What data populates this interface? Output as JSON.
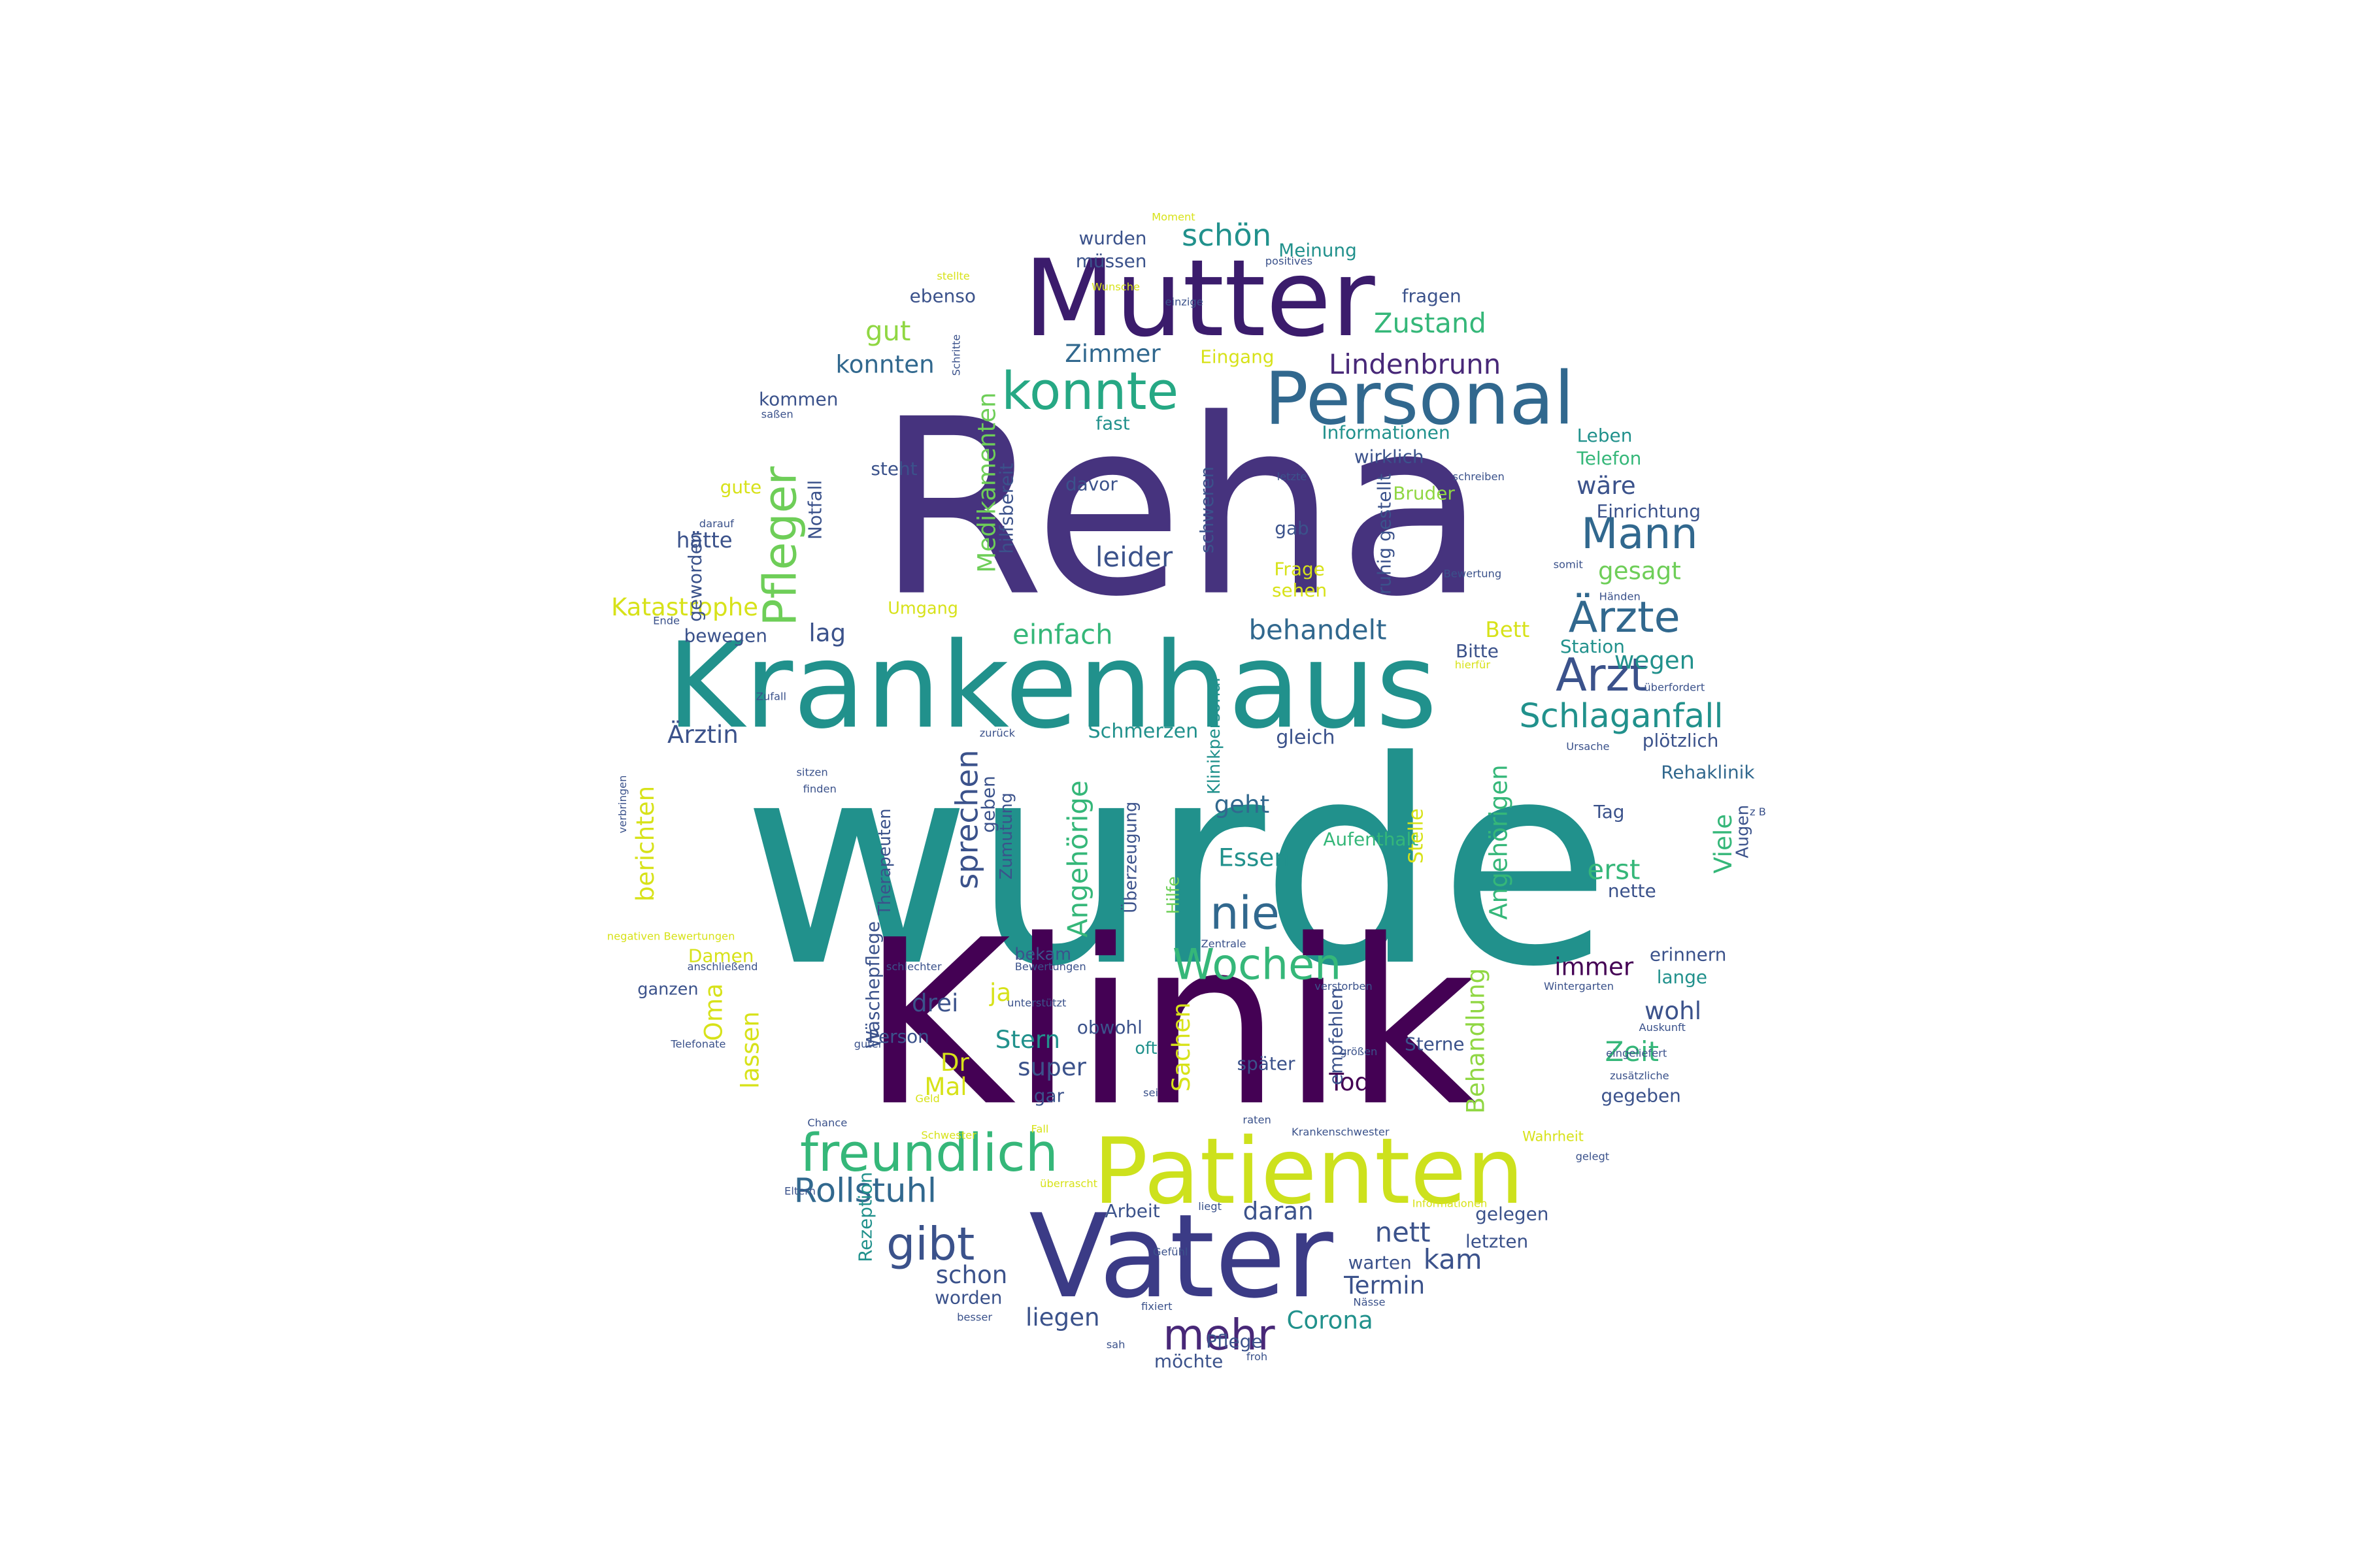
{
  "palette": {
    "dark_purple": "#440154",
    "indigo": "#3b528b",
    "blue": "#31688e",
    "teal": "#21918c",
    "green": "#35b779",
    "lime": "#90d743",
    "yellow": "#d7e219"
  },
  "words": [
    {
      "text": "wurde",
      "color": "#21918c",
      "vertical": false
    },
    {
      "text": "Reha",
      "color": "#46337e",
      "vertical": false
    },
    {
      "text": "Klinik",
      "color": "#440154",
      "vertical": false
    },
    {
      "text": "Krankenhaus",
      "color": "#21918c",
      "vertical": false
    },
    {
      "text": "Mutter",
      "color": "#3b1c6c",
      "vertical": false
    },
    {
      "text": "Vater",
      "color": "#3b3b86",
      "vertical": false
    },
    {
      "text": "Patienten",
      "color": "#cde11d",
      "vertical": false
    },
    {
      "text": "Personal",
      "color": "#31688e",
      "vertical": false
    },
    {
      "text": "konnte",
      "color": "#26a884",
      "vertical": false
    },
    {
      "text": "Pfleger",
      "color": "#6ece58",
      "vertical": true
    },
    {
      "text": "Mann",
      "color": "#31688e",
      "vertical": false
    },
    {
      "text": "Ärzte",
      "color": "#31688e",
      "vertical": false
    },
    {
      "text": "Arzt",
      "color": "#3b528b",
      "vertical": false
    },
    {
      "text": "Schlaganfall",
      "color": "#21918c",
      "vertical": false
    },
    {
      "text": "freundlich",
      "color": "#35b779",
      "vertical": false
    },
    {
      "text": "Wochen",
      "color": "#35b779",
      "vertical": false
    },
    {
      "text": "nie",
      "color": "#31688e",
      "vertical": false
    },
    {
      "text": "mehr",
      "color": "#482878",
      "vertical": false
    },
    {
      "text": "gibt",
      "color": "#3b528b",
      "vertical": false
    },
    {
      "text": "Rollstuhl",
      "color": "#31688e",
      "vertical": false
    },
    {
      "text": "Medikamenten",
      "color": "#6ece58",
      "vertical": true
    },
    {
      "text": "Lindenbrunn",
      "color": "#482878",
      "vertical": false
    },
    {
      "text": "schön",
      "color": "#21918c",
      "vertical": false
    },
    {
      "text": "Zustand",
      "color": "#35b779",
      "vertical": false
    },
    {
      "text": "gut",
      "color": "#90d743",
      "vertical": false
    },
    {
      "text": "konnten",
      "color": "#31688e",
      "vertical": false
    },
    {
      "text": "Zimmer",
      "color": "#31688e",
      "vertical": false
    },
    {
      "text": "leider",
      "color": "#3b528b",
      "vertical": false
    },
    {
      "text": "behandelt",
      "color": "#31688e",
      "vertical": false
    },
    {
      "text": "einfach",
      "color": "#35b779",
      "vertical": false
    },
    {
      "text": "wegen",
      "color": "#21918c",
      "vertical": false
    },
    {
      "text": "gesagt",
      "color": "#6ece58",
      "vertical": false
    },
    {
      "text": "wäre",
      "color": "#3b528b",
      "vertical": false
    },
    {
      "text": "sprechen",
      "color": "#3b528b",
      "vertical": true
    },
    {
      "text": "Angehörige",
      "color": "#35b779",
      "vertical": true
    },
    {
      "text": "Angehörigen",
      "color": "#35b779",
      "vertical": true
    },
    {
      "text": "Behandlung",
      "color": "#90d743",
      "vertical": true
    },
    {
      "text": "Essen",
      "color": "#21918c",
      "vertical": false
    },
    {
      "text": "geht",
      "color": "#31688e",
      "vertical": false
    },
    {
      "text": "immer",
      "color": "#440154",
      "vertical": false
    },
    {
      "text": "wohl",
      "color": "#3b528b",
      "vertical": false
    },
    {
      "text": "Zeit",
      "color": "#35b779",
      "vertical": false
    },
    {
      "text": "Viele",
      "color": "#35b779",
      "vertical": true
    },
    {
      "text": "erst",
      "color": "#35b779",
      "vertical": false
    },
    {
      "text": "nett",
      "color": "#3b528b",
      "vertical": false
    },
    {
      "text": "kam",
      "color": "#3b528b",
      "vertical": false
    },
    {
      "text": "Termin",
      "color": "#3b528b",
      "vertical": false
    },
    {
      "text": "Corona",
      "color": "#21918c",
      "vertical": false
    },
    {
      "text": "daran",
      "color": "#3b528b",
      "vertical": false
    },
    {
      "text": "schon",
      "color": "#3b528b",
      "vertical": false
    },
    {
      "text": "liegen",
      "color": "#3b528b",
      "vertical": false
    },
    {
      "text": "Stern",
      "color": "#21918c",
      "vertical": false
    },
    {
      "text": "super",
      "color": "#3b528b",
      "vertical": false
    },
    {
      "text": "Tod",
      "color": "#440154",
      "vertical": false
    },
    {
      "text": "Sachen",
      "color": "#d7e219",
      "vertical": true
    },
    {
      "text": "ja",
      "color": "#d7e219",
      "vertical": false
    },
    {
      "text": "drei",
      "color": "#3b528b",
      "vertical": false
    },
    {
      "text": "Dr",
      "color": "#d7e219",
      "vertical": false
    },
    {
      "text": "Mal",
      "color": "#d7e219",
      "vertical": false
    },
    {
      "text": "Oma",
      "color": "#d7e219",
      "vertical": true
    },
    {
      "text": "lassen",
      "color": "#d7e219",
      "vertical": true
    },
    {
      "text": "berichten",
      "color": "#d7e219",
      "vertical": true
    },
    {
      "text": "Ärztin",
      "color": "#3b528b",
      "vertical": false
    },
    {
      "text": "Katastrophe",
      "color": "#d7e219",
      "vertical": false
    },
    {
      "text": "hätte",
      "color": "#3b528b",
      "vertical": false
    },
    {
      "text": "lag",
      "color": "#3b528b",
      "vertical": false
    },
    {
      "text": "Bett",
      "color": "#d7e219",
      "vertical": false
    },
    {
      "text": "Bitte",
      "color": "#3b528b",
      "vertical": false
    },
    {
      "text": "Station",
      "color": "#21918c",
      "vertical": false
    },
    {
      "text": "gleich",
      "color": "#3b528b",
      "vertical": false
    },
    {
      "text": "Schmerzen",
      "color": "#21918c",
      "vertical": false
    },
    {
      "text": "plötzlich",
      "color": "#3b528b",
      "vertical": false
    },
    {
      "text": "Rehaklinik",
      "color": "#31688e",
      "vertical": false
    },
    {
      "text": "Tag",
      "color": "#3b528b",
      "vertical": false
    },
    {
      "text": "nette",
      "color": "#3b528b",
      "vertical": false
    },
    {
      "text": "erinnern",
      "color": "#3b528b",
      "vertical": false
    },
    {
      "text": "lange",
      "color": "#21918c",
      "vertical": false
    },
    {
      "text": "gegeben",
      "color": "#3b528b",
      "vertical": false
    },
    {
      "text": "wurden",
      "color": "#3b528b",
      "vertical": false
    },
    {
      "text": "Meinung",
      "color": "#21918c",
      "vertical": false
    },
    {
      "text": "müssen",
      "color": "#3b528b",
      "vertical": false
    },
    {
      "text": "ebenso",
      "color": "#3b528b",
      "vertical": false
    },
    {
      "text": "fragen",
      "color": "#3b528b",
      "vertical": false
    },
    {
      "text": "Eingang",
      "color": "#d7e219",
      "vertical": false
    },
    {
      "text": "kommen",
      "color": "#3b528b",
      "vertical": false
    },
    {
      "text": "steht",
      "color": "#3b528b",
      "vertical": false
    },
    {
      "text": "fast",
      "color": "#21918c",
      "vertical": false
    },
    {
      "text": "Informationen",
      "color": "#21918c",
      "vertical": false
    },
    {
      "text": "wirklich",
      "color": "#3b528b",
      "vertical": false
    },
    {
      "text": "Leben",
      "color": "#21918c",
      "vertical": false
    },
    {
      "text": "Telefon",
      "color": "#35b779",
      "vertical": false
    },
    {
      "text": "Bruder",
      "color": "#90d743",
      "vertical": false
    },
    {
      "text": "Einrichtung",
      "color": "#3b528b",
      "vertical": false
    },
    {
      "text": "davor",
      "color": "#3b528b",
      "vertical": false
    },
    {
      "text": "gab",
      "color": "#3b528b",
      "vertical": false
    },
    {
      "text": "Frage",
      "color": "#d7e219",
      "vertical": false
    },
    {
      "text": "sehen",
      "color": "#d7e219",
      "vertical": false
    },
    {
      "text": "gute",
      "color": "#d7e219",
      "vertical": false
    },
    {
      "text": "Notfall",
      "color": "#3b528b",
      "vertical": true
    },
    {
      "text": "hilfsbereit",
      "color": "#3b528b",
      "vertical": true
    },
    {
      "text": "schweren",
      "color": "#3b528b",
      "vertical": true
    },
    {
      "text": "ruhig gestellt",
      "color": "#3b528b",
      "vertical": true
    },
    {
      "text": "geworden",
      "color": "#3b528b",
      "vertical": true
    },
    {
      "text": "bewegen",
      "color": "#3b528b",
      "vertical": false
    },
    {
      "text": "Umgang",
      "color": "#d7e219",
      "vertical": false
    },
    {
      "text": "geben",
      "color": "#3b528b",
      "vertical": true
    },
    {
      "text": "Zumutung",
      "color": "#3b528b",
      "vertical": true
    },
    {
      "text": "Therapeuten",
      "color": "#3b528b",
      "vertical": true
    },
    {
      "text": "Überzeugung",
      "color": "#3b528b",
      "vertical": true
    },
    {
      "text": "Klinikpersonal",
      "color": "#21918c",
      "vertical": true
    },
    {
      "text": "Aufenthalt",
      "color": "#35b779",
      "vertical": false
    },
    {
      "text": "Stelle",
      "color": "#d7e219",
      "vertical": true
    },
    {
      "text": "Hilfe",
      "color": "#6ece58",
      "vertical": true
    },
    {
      "text": "Augen",
      "color": "#3b528b",
      "vertical": true
    },
    {
      "text": "Wäschepflege",
      "color": "#3b528b",
      "vertical": true
    },
    {
      "text": "Damen",
      "color": "#d7e219",
      "vertical": false
    },
    {
      "text": "ganzen",
      "color": "#3b528b",
      "vertical": false
    },
    {
      "text": "bekam",
      "color": "#3b528b",
      "vertical": false
    },
    {
      "text": "obwohl",
      "color": "#3b528b",
      "vertical": false
    },
    {
      "text": "Person",
      "color": "#3b528b",
      "vertical": false
    },
    {
      "text": "oft",
      "color": "#21918c",
      "vertical": false
    },
    {
      "text": "empfehlen",
      "color": "#3b528b",
      "vertical": true
    },
    {
      "text": "später",
      "color": "#3b528b",
      "vertical": false
    },
    {
      "text": "gar",
      "color": "#3b528b",
      "vertical": false
    },
    {
      "text": "Sterne",
      "color": "#3b528b",
      "vertical": false
    },
    {
      "text": "Rezeption",
      "color": "#21918c",
      "vertical": true
    },
    {
      "text": "Arbeit",
      "color": "#3b528b",
      "vertical": false
    },
    {
      "text": "gelegen",
      "color": "#3b528b",
      "vertical": false
    },
    {
      "text": "letzten",
      "color": "#3b528b",
      "vertical": false
    },
    {
      "text": "warten",
      "color": "#3b528b",
      "vertical": false
    },
    {
      "text": "worden",
      "color": "#3b528b",
      "vertical": false
    },
    {
      "text": "Pflege",
      "color": "#3b528b",
      "vertical": false
    },
    {
      "text": "möchte",
      "color": "#3b528b",
      "vertical": false
    },
    {
      "text": "Wahrheit",
      "color": "#d7e219",
      "vertical": false
    },
    {
      "text": "negativen Bewertungen",
      "color": "#d7e219",
      "vertical": false
    },
    {
      "text": "anschließend",
      "color": "#3b528b",
      "vertical": false
    },
    {
      "text": "schlechter",
      "color": "#3b528b",
      "vertical": false
    },
    {
      "text": "Bewertungen",
      "color": "#3b528b",
      "vertical": false
    },
    {
      "text": "verstorben",
      "color": "#3b528b",
      "vertical": false
    },
    {
      "text": "Wintergarten",
      "color": "#3b528b",
      "vertical": false
    },
    {
      "text": "Auskunft",
      "color": "#3b528b",
      "vertical": false
    },
    {
      "text": "zusätzliche",
      "color": "#3b528b",
      "vertical": false
    },
    {
      "text": "eingeliefert",
      "color": "#3b528b",
      "vertical": false
    },
    {
      "text": "Telefonate",
      "color": "#3b528b",
      "vertical": false
    },
    {
      "text": "guter",
      "color": "#3b528b",
      "vertical": false
    },
    {
      "text": "Chance",
      "color": "#3b528b",
      "vertical": false
    },
    {
      "text": "Eltern",
      "color": "#3b528b",
      "vertical": false
    },
    {
      "text": "besser",
      "color": "#3b528b",
      "vertical": false
    },
    {
      "text": "sah",
      "color": "#3b528b",
      "vertical": false
    },
    {
      "text": "froh",
      "color": "#3b528b",
      "vertical": false
    },
    {
      "text": "fixiert",
      "color": "#3b528b",
      "vertical": false
    },
    {
      "text": "Nässe",
      "color": "#3b528b",
      "vertical": false
    },
    {
      "text": "Bewertung",
      "color": "#3b528b",
      "vertical": false
    },
    {
      "text": "Ursache",
      "color": "#3b528b",
      "vertical": false
    },
    {
      "text": "überfordert",
      "color": "#3b528b",
      "vertical": false
    },
    {
      "text": "Ende",
      "color": "#3b528b",
      "vertical": false
    },
    {
      "text": "Zufall",
      "color": "#3b528b",
      "vertical": false
    },
    {
      "text": "finden",
      "color": "#3b528b",
      "vertical": false
    },
    {
      "text": "sitzen",
      "color": "#3b528b",
      "vertical": false
    },
    {
      "text": "zurück",
      "color": "#3b528b",
      "vertical": false
    },
    {
      "text": "einzige",
      "color": "#3b528b",
      "vertical": false
    },
    {
      "text": "positives",
      "color": "#3b528b",
      "vertical": false
    },
    {
      "text": "saßen",
      "color": "#3b528b",
      "vertical": false
    },
    {
      "text": "darauf",
      "color": "#3b528b",
      "vertical": false
    },
    {
      "text": "letzte",
      "color": "#3b528b",
      "vertical": false
    },
    {
      "text": "schreiben",
      "color": "#3b528b",
      "vertical": false
    },
    {
      "text": "somit",
      "color": "#3b528b",
      "vertical": false
    },
    {
      "text": "Händen",
      "color": "#3b528b",
      "vertical": false
    },
    {
      "text": "liegt",
      "color": "#3b528b",
      "vertical": false
    },
    {
      "text": "raten",
      "color": "#3b528b",
      "vertical": false
    },
    {
      "text": "größen",
      "color": "#3b528b",
      "vertical": false
    },
    {
      "text": "sei",
      "color": "#3b528b",
      "vertical": false
    },
    {
      "text": "Krankenschwester",
      "color": "#3b528b",
      "vertical": false
    },
    {
      "text": "Zentrale",
      "color": "#3b528b",
      "vertical": false
    },
    {
      "text": "unterstützt",
      "color": "#3b528b",
      "vertical": false
    },
    {
      "text": "Schwester",
      "color": "#d7e219",
      "vertical": false
    },
    {
      "text": "Fall",
      "color": "#d7e219",
      "vertical": false
    },
    {
      "text": "überrascht",
      "color": "#d7e219",
      "vertical": false
    },
    {
      "text": "Informationen",
      "color": "#d7e219",
      "vertical": false
    },
    {
      "text": "z B",
      "color": "#3b528b",
      "vertical": false
    },
    {
      "text": "Geld",
      "color": "#d7e219",
      "vertical": false
    },
    {
      "text": "Gefühl",
      "color": "#3b528b",
      "vertical": false
    },
    {
      "text": "Moment",
      "color": "#d7e219",
      "vertical": false
    },
    {
      "text": "Wunsche",
      "color": "#d7e219",
      "vertical": false
    },
    {
      "text": "Schritte",
      "color": "#3b528b",
      "vertical": true
    },
    {
      "text": "stellte",
      "color": "#d7e219",
      "vertical": false
    },
    {
      "text": "hierfür",
      "color": "#d7e219",
      "vertical": false
    },
    {
      "text": "gelegt",
      "color": "#3b528b",
      "vertical": false
    },
    {
      "text": "verbringen",
      "color": "#3b528b",
      "vertical": true
    }
  ]
}
